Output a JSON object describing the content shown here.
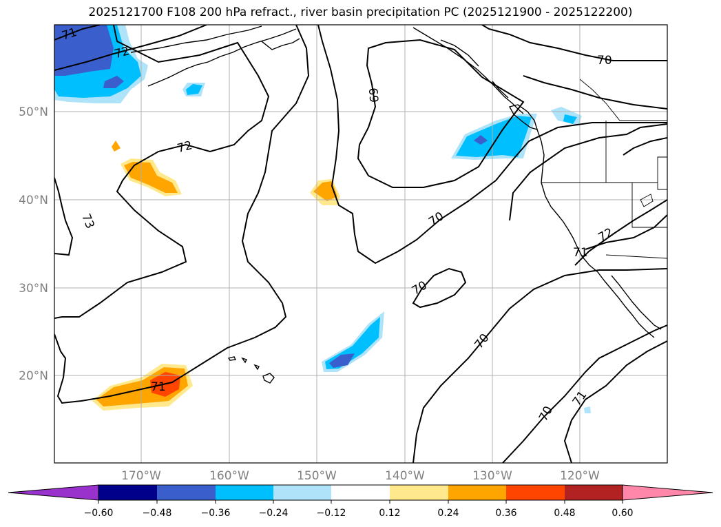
{
  "title": "2025121700 F108 200 hPa refract., river basin precipitation PC (2025121900 - 2025122200)",
  "map": {
    "lat_labels": [
      "50°N",
      "40°N",
      "30°N",
      "20°N"
    ],
    "lon_labels": [
      "170°W",
      "160°W",
      "150°W",
      "140°W",
      "130°W",
      "120°W"
    ]
  },
  "contour_labels": [
    {
      "text": "71",
      "label": "contour-71-northwest"
    },
    {
      "text": "72",
      "label": "contour-72-northwest"
    },
    {
      "text": "72",
      "label": "contour-72-central"
    },
    {
      "text": "73",
      "label": "contour-73-west"
    },
    {
      "text": "69",
      "label": "contour-69-north"
    },
    {
      "text": "70",
      "label": "contour-70-northeast"
    },
    {
      "text": "70",
      "label": "contour-70-central"
    },
    {
      "text": "70",
      "label": "contour-70-loop"
    },
    {
      "text": "70",
      "label": "contour-70-south"
    },
    {
      "text": "70",
      "label": "contour-70-southeast"
    },
    {
      "text": "71",
      "label": "contour-71-southwest"
    },
    {
      "text": "71",
      "label": "contour-71-southeast"
    },
    {
      "text": "71",
      "label": "contour-71-coast"
    },
    {
      "text": "72",
      "label": "contour-72-coast"
    }
  ],
  "colorbar": {
    "ticks": [
      "−0.60",
      "−0.48",
      "−0.36",
      "−0.24",
      "−0.12",
      "0.12",
      "0.24",
      "0.36",
      "0.48",
      "0.60"
    ],
    "colors": [
      "#9932cc",
      "#00008b",
      "#3a5fcd",
      "#00bfff",
      "#aee3fa",
      "#ffffff",
      "#ffe98c",
      "#ffa500",
      "#ff4500",
      "#b22222",
      "#ff88aa"
    ]
  }
}
